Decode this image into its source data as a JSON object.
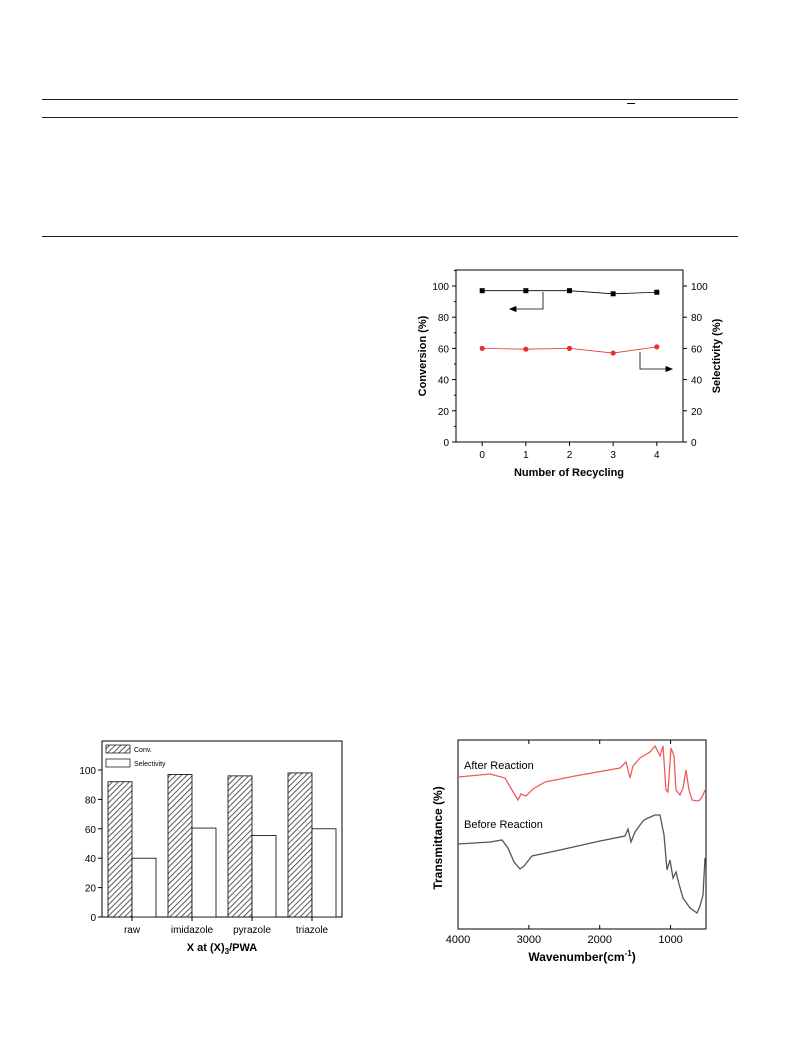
{
  "charts": {
    "recycling": {
      "type": "line",
      "x": [
        0,
        1,
        2,
        3,
        4
      ],
      "xlabel": "Number of Recycling",
      "ylabel_left": "Conversion (%)",
      "ylabel_right": "Selectivity (%)",
      "xlim": [
        -0.6,
        4.6
      ],
      "ylim": [
        0,
        100
      ],
      "left_ticks": [
        "0",
        "20",
        "40",
        "60",
        "80",
        "100"
      ],
      "right_ticks": [
        "0",
        "20",
        "40",
        "60",
        "80",
        "100"
      ],
      "x_ticks": [
        "0",
        "1",
        "2",
        "3",
        "4"
      ],
      "series": [
        {
          "axis": "left",
          "color": "#000000",
          "marker": "square",
          "values": [
            97,
            97,
            97,
            95,
            96
          ]
        },
        {
          "axis": "right",
          "color": "#e8312f",
          "marker": "circle",
          "values": [
            60,
            59.5,
            60,
            57,
            61
          ]
        }
      ]
    },
    "bar": {
      "type": "bar",
      "categories": [
        "raw",
        "imidazole",
        "pyrazole",
        "triazole"
      ],
      "xlabel_pre": "X at (X)",
      "xlabel_sub": "3",
      "xlabel_post": "/PWA",
      "ylim": [
        0,
        115
      ],
      "y_ticks": [
        "0",
        "20",
        "40",
        "60",
        "80",
        "100"
      ],
      "legend": [
        "Conv.",
        "Selectivity"
      ],
      "series": [
        {
          "name": "Conv.",
          "values": [
            92,
            97,
            96,
            98
          ]
        },
        {
          "name": "Selectivity",
          "values": [
            40,
            60.5,
            55.5,
            60
          ]
        }
      ]
    },
    "ftir": {
      "type": "line",
      "xlabel_pre": "Wavenumber(cm",
      "xlabel_sup": "-1",
      "xlabel_post": ")",
      "ylabel": "Transmittance (%)",
      "xlim": [
        4000,
        500
      ],
      "x_ticks": [
        "4000",
        "3000",
        "2000",
        "1000"
      ],
      "series": [
        {
          "name": "After Reaction",
          "color": "#f25a5a"
        },
        {
          "name": "Before Reaction",
          "color": "#555555"
        }
      ]
    }
  }
}
